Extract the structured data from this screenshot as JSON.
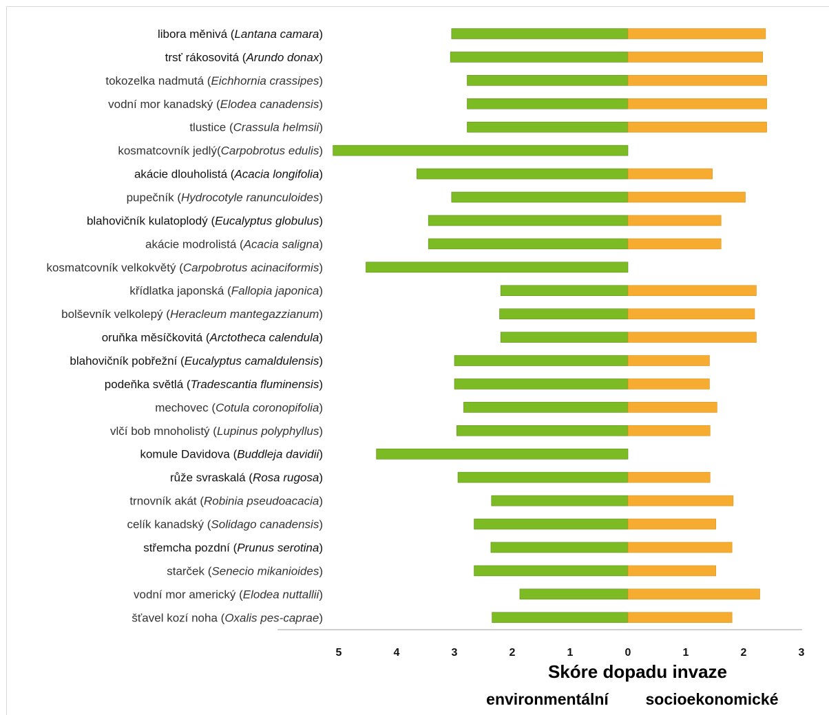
{
  "chart_data": {
    "type": "bar",
    "orientation": "horizontal-diverging",
    "categories": [
      {
        "common": "libora měnivá",
        "latin": "Lantana camara",
        "sep": " "
      },
      {
        "common": "trsť rákosovitá",
        "latin": "Arundo donax",
        "sep": " "
      },
      {
        "common": "tokozelka nadmutá",
        "latin": "Eichhornia crassipes",
        "sep": " "
      },
      {
        "common": "vodní mor kanadský",
        "latin": "Elodea canadensis",
        "sep": " "
      },
      {
        "common": "tlustice",
        "latin": "Crassula helmsii",
        "sep": " "
      },
      {
        "common": "kosmatcovník jedlý",
        "latin": "Carpobrotus edulis",
        "sep": ""
      },
      {
        "common": "akácie dlouholistá",
        "latin": "Acacia longifolia",
        "sep": " "
      },
      {
        "common": "pupečník",
        "latin": "Hydrocotyle ranunculoides",
        "sep": " "
      },
      {
        "common": "blahovičník kulatoplodý",
        "latin": "Eucalyptus globulus",
        "sep": " "
      },
      {
        "common": "akácie modrolistá",
        "latin": "Acacia saligna",
        "sep": " "
      },
      {
        "common": "kosmatcovník velkokvětý",
        "latin": "Carpobrotus acinaciformis",
        "sep": " "
      },
      {
        "common": "křídlatka japonská",
        "latin": "Fallopia japonica",
        "sep": " "
      },
      {
        "common": "bolševník velkolepý",
        "latin": "Heracleum mantegazzianum",
        "sep": " "
      },
      {
        "common": "oruňka měsíčkovitá",
        "latin": "Arctotheca calendula",
        "sep": " "
      },
      {
        "common": "blahovičník pobřežní",
        "latin": "Eucalyptus camaldulensis",
        "sep": " "
      },
      {
        "common": "podeňka světlá",
        "latin": "Tradescantia fluminensis",
        "sep": " "
      },
      {
        "common": "mechovec",
        "latin": "Cotula coronopifolia",
        "sep": " "
      },
      {
        "common": "vlčí bob mnoholistý",
        "latin": "Lupinus polyphyllus",
        "sep": " "
      },
      {
        "common": "komule Davidova",
        "latin": "Buddleja davidii",
        "sep": " "
      },
      {
        "common": "růže svraskalá ",
        "latin": "Rosa rugosa",
        "sep": " "
      },
      {
        "common": "trnovník akát",
        "latin": "Robinia pseudoacacia",
        "sep": " "
      },
      {
        "common": "celík kanadský",
        "latin": "Solidago canadensis",
        "sep": " "
      },
      {
        "common": "střemcha pozdní",
        "latin": "Prunus serotina",
        "sep": " "
      },
      {
        "common": "starček",
        "latin": "Senecio mikanioides",
        "sep": " "
      },
      {
        "common": "vodní mor americký",
        "latin": "Elodea nuttallii",
        "sep": " "
      },
      {
        "common": "šťavel kozí noha",
        "latin": "Oxalis pes-caprae",
        "sep": " "
      }
    ],
    "bold_label_rows": [
      0,
      1,
      6,
      8,
      13,
      14,
      15,
      18,
      19,
      22
    ],
    "series": [
      {
        "key": "environmental",
        "color": "#7cbb24",
        "direction": "left",
        "values": [
          3.05,
          3.07,
          2.78,
          2.78,
          2.78,
          5.1,
          3.65,
          3.05,
          3.45,
          3.45,
          4.53,
          2.2,
          2.22,
          2.2,
          3.0,
          3.0,
          2.84,
          2.96,
          4.35,
          2.94,
          2.36,
          2.66,
          2.37,
          2.66,
          1.87,
          2.35
        ]
      },
      {
        "key": "socioeconomic",
        "color": "#f5ac30",
        "direction": "right",
        "values": [
          2.38,
          2.33,
          2.4,
          2.4,
          2.4,
          0,
          1.46,
          2.03,
          1.61,
          1.61,
          0,
          2.22,
          2.19,
          2.22,
          1.41,
          1.41,
          1.54,
          1.42,
          0,
          1.42,
          1.82,
          1.52,
          1.8,
          1.52,
          2.28,
          1.8
        ]
      }
    ],
    "x_ticks_left": [
      "5",
      "4",
      "3",
      "2",
      "1"
    ],
    "x_ticks_right": [
      "0",
      "1",
      "2",
      "3"
    ],
    "xlim_left": [
      5,
      0
    ],
    "xlim_right": [
      0,
      3
    ],
    "xlabel": "Skóre dopadu invaze",
    "xlabel_left": "environmentální",
    "xlabel_right": "socioekonomické",
    "grid": false,
    "legend": "none"
  }
}
